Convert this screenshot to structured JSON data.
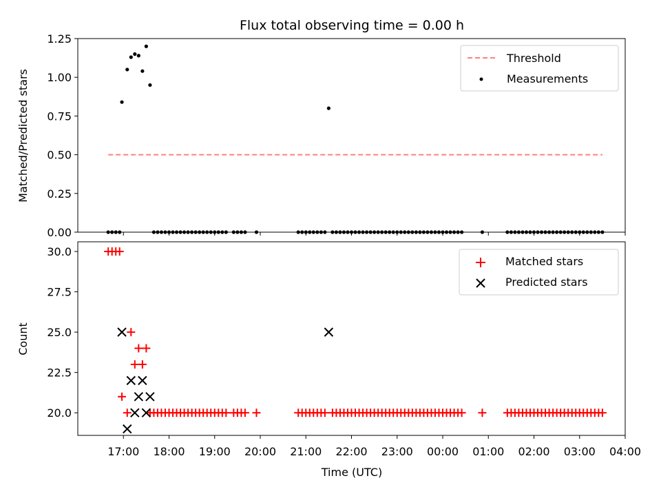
{
  "figure": {
    "title": "Flux total observing time = 0.00 h"
  },
  "chart_data": [
    {
      "type": "scatter",
      "panel": "top",
      "ylabel": "Matched/Predicted stars",
      "ylim": [
        0,
        1.25
      ],
      "yticks": [
        "0.00",
        "0.25",
        "0.50",
        "0.75",
        "1.00",
        "1.25"
      ],
      "xlim_hours": [
        16.0,
        28.0
      ],
      "threshold": {
        "name": "Threshold",
        "value": 0.5,
        "x_range": [
          "16:40",
          "03:30"
        ],
        "color": "#ff7f7f"
      },
      "series": [
        {
          "name": "Measurements",
          "color": "#000000",
          "points": [
            [
              "16:40",
              0
            ],
            [
              "16:45",
              0
            ],
            [
              "16:50",
              0
            ],
            [
              "16:55",
              0
            ],
            [
              "16:58",
              0.84
            ],
            [
              "17:05",
              1.05
            ],
            [
              "17:10",
              1.13
            ],
            [
              "17:15",
              1.15
            ],
            [
              "17:20",
              1.14
            ],
            [
              "17:25",
              1.04
            ],
            [
              "17:30",
              1.2
            ],
            [
              "17:35",
              0.95
            ],
            [
              "17:40",
              0
            ],
            [
              "17:45",
              0
            ],
            [
              "17:50",
              0
            ],
            [
              "17:55",
              0
            ],
            [
              "18:00",
              0
            ],
            [
              "18:05",
              0
            ],
            [
              "18:10",
              0
            ],
            [
              "18:15",
              0
            ],
            [
              "18:20",
              0
            ],
            [
              "18:25",
              0
            ],
            [
              "18:30",
              0
            ],
            [
              "18:35",
              0
            ],
            [
              "18:40",
              0
            ],
            [
              "18:45",
              0
            ],
            [
              "18:50",
              0
            ],
            [
              "18:55",
              0
            ],
            [
              "19:00",
              0
            ],
            [
              "19:05",
              0
            ],
            [
              "19:10",
              0
            ],
            [
              "19:15",
              0
            ],
            [
              "19:25",
              0
            ],
            [
              "19:30",
              0
            ],
            [
              "19:35",
              0
            ],
            [
              "19:40",
              0
            ],
            [
              "19:55",
              0
            ],
            [
              "20:50",
              0
            ],
            [
              "20:55",
              0
            ],
            [
              "21:00",
              0
            ],
            [
              "21:05",
              0
            ],
            [
              "21:10",
              0
            ],
            [
              "21:15",
              0
            ],
            [
              "21:20",
              0
            ],
            [
              "21:25",
              0
            ],
            [
              "21:30",
              0.8
            ],
            [
              "21:35",
              0
            ],
            [
              "21:40",
              0
            ],
            [
              "21:45",
              0
            ],
            [
              "21:50",
              0
            ],
            [
              "21:55",
              0
            ],
            [
              "22:00",
              0
            ],
            [
              "22:05",
              0
            ],
            [
              "22:10",
              0
            ],
            [
              "22:15",
              0
            ],
            [
              "22:20",
              0
            ],
            [
              "22:25",
              0
            ],
            [
              "22:30",
              0
            ],
            [
              "22:35",
              0
            ],
            [
              "22:40",
              0
            ],
            [
              "22:45",
              0
            ],
            [
              "22:50",
              0
            ],
            [
              "22:55",
              0
            ],
            [
              "23:00",
              0
            ],
            [
              "23:05",
              0
            ],
            [
              "23:10",
              0
            ],
            [
              "23:15",
              0
            ],
            [
              "23:20",
              0
            ],
            [
              "23:25",
              0
            ],
            [
              "23:30",
              0
            ],
            [
              "23:35",
              0
            ],
            [
              "23:40",
              0
            ],
            [
              "23:45",
              0
            ],
            [
              "23:50",
              0
            ],
            [
              "23:55",
              0
            ],
            [
              "00:00",
              0
            ],
            [
              "00:05",
              0
            ],
            [
              "00:10",
              0
            ],
            [
              "00:15",
              0
            ],
            [
              "00:20",
              0
            ],
            [
              "00:25",
              0
            ],
            [
              "00:52",
              0
            ],
            [
              "01:25",
              0
            ],
            [
              "01:30",
              0
            ],
            [
              "01:35",
              0
            ],
            [
              "01:40",
              0
            ],
            [
              "01:45",
              0
            ],
            [
              "01:50",
              0
            ],
            [
              "01:55",
              0
            ],
            [
              "02:00",
              0
            ],
            [
              "02:05",
              0
            ],
            [
              "02:10",
              0
            ],
            [
              "02:15",
              0
            ],
            [
              "02:20",
              0
            ],
            [
              "02:25",
              0
            ],
            [
              "02:30",
              0
            ],
            [
              "02:35",
              0
            ],
            [
              "02:40",
              0
            ],
            [
              "02:45",
              0
            ],
            [
              "02:50",
              0
            ],
            [
              "02:55",
              0
            ],
            [
              "03:00",
              0
            ],
            [
              "03:05",
              0
            ],
            [
              "03:10",
              0
            ],
            [
              "03:15",
              0
            ],
            [
              "03:20",
              0
            ],
            [
              "03:25",
              0
            ],
            [
              "03:30",
              0
            ]
          ]
        }
      ],
      "legend": {
        "placement": "top-right",
        "entries": [
          "Threshold",
          "Measurements"
        ]
      }
    },
    {
      "type": "scatter",
      "panel": "bottom",
      "ylabel": "Count",
      "xlabel": "Time (UTC)",
      "ylim": [
        18.6,
        30.6
      ],
      "yticks": [
        "20.0",
        "22.5",
        "25.0",
        "27.5",
        "30.0"
      ],
      "xticks": [
        "17:00",
        "18:00",
        "19:00",
        "20:00",
        "21:00",
        "22:00",
        "23:00",
        "00:00",
        "01:00",
        "02:00",
        "03:00",
        "04:00"
      ],
      "series": [
        {
          "name": "Matched stars",
          "marker": "+",
          "color": "#ff0000",
          "points": [
            [
              "16:40",
              30
            ],
            [
              "16:45",
              30
            ],
            [
              "16:50",
              30
            ],
            [
              "16:55",
              30
            ],
            [
              "16:58",
              21
            ],
            [
              "17:05",
              20
            ],
            [
              "17:10",
              25
            ],
            [
              "17:15",
              23
            ],
            [
              "17:20",
              24
            ],
            [
              "17:25",
              23
            ],
            [
              "17:30",
              24
            ],
            [
              "17:35",
              20
            ],
            [
              "17:40",
              20
            ],
            [
              "17:45",
              20
            ],
            [
              "17:50",
              20
            ],
            [
              "17:55",
              20
            ],
            [
              "18:00",
              20
            ],
            [
              "18:05",
              20
            ],
            [
              "18:10",
              20
            ],
            [
              "18:15",
              20
            ],
            [
              "18:20",
              20
            ],
            [
              "18:25",
              20
            ],
            [
              "18:30",
              20
            ],
            [
              "18:35",
              20
            ],
            [
              "18:40",
              20
            ],
            [
              "18:45",
              20
            ],
            [
              "18:50",
              20
            ],
            [
              "18:55",
              20
            ],
            [
              "19:00",
              20
            ],
            [
              "19:05",
              20
            ],
            [
              "19:10",
              20
            ],
            [
              "19:15",
              20
            ],
            [
              "19:25",
              20
            ],
            [
              "19:30",
              20
            ],
            [
              "19:35",
              20
            ],
            [
              "19:40",
              20
            ],
            [
              "19:55",
              20
            ],
            [
              "20:50",
              20
            ],
            [
              "20:55",
              20
            ],
            [
              "21:00",
              20
            ],
            [
              "21:05",
              20
            ],
            [
              "21:10",
              20
            ],
            [
              "21:15",
              20
            ],
            [
              "21:20",
              20
            ],
            [
              "21:25",
              20
            ],
            [
              "21:35",
              20
            ],
            [
              "21:40",
              20
            ],
            [
              "21:45",
              20
            ],
            [
              "21:50",
              20
            ],
            [
              "21:55",
              20
            ],
            [
              "22:00",
              20
            ],
            [
              "22:05",
              20
            ],
            [
              "22:10",
              20
            ],
            [
              "22:15",
              20
            ],
            [
              "22:20",
              20
            ],
            [
              "22:25",
              20
            ],
            [
              "22:30",
              20
            ],
            [
              "22:35",
              20
            ],
            [
              "22:40",
              20
            ],
            [
              "22:45",
              20
            ],
            [
              "22:50",
              20
            ],
            [
              "22:55",
              20
            ],
            [
              "23:00",
              20
            ],
            [
              "23:05",
              20
            ],
            [
              "23:10",
              20
            ],
            [
              "23:15",
              20
            ],
            [
              "23:20",
              20
            ],
            [
              "23:25",
              20
            ],
            [
              "23:30",
              20
            ],
            [
              "23:35",
              20
            ],
            [
              "23:40",
              20
            ],
            [
              "23:45",
              20
            ],
            [
              "23:50",
              20
            ],
            [
              "23:55",
              20
            ],
            [
              "00:00",
              20
            ],
            [
              "00:05",
              20
            ],
            [
              "00:10",
              20
            ],
            [
              "00:15",
              20
            ],
            [
              "00:20",
              20
            ],
            [
              "00:25",
              20
            ],
            [
              "00:52",
              20
            ],
            [
              "01:25",
              20
            ],
            [
              "01:30",
              20
            ],
            [
              "01:35",
              20
            ],
            [
              "01:40",
              20
            ],
            [
              "01:45",
              20
            ],
            [
              "01:50",
              20
            ],
            [
              "01:55",
              20
            ],
            [
              "02:00",
              20
            ],
            [
              "02:05",
              20
            ],
            [
              "02:10",
              20
            ],
            [
              "02:15",
              20
            ],
            [
              "02:20",
              20
            ],
            [
              "02:25",
              20
            ],
            [
              "02:30",
              20
            ],
            [
              "02:35",
              20
            ],
            [
              "02:40",
              20
            ],
            [
              "02:45",
              20
            ],
            [
              "02:50",
              20
            ],
            [
              "02:55",
              20
            ],
            [
              "03:00",
              20
            ],
            [
              "03:05",
              20
            ],
            [
              "03:10",
              20
            ],
            [
              "03:15",
              20
            ],
            [
              "03:20",
              20
            ],
            [
              "03:25",
              20
            ],
            [
              "03:30",
              20
            ]
          ]
        },
        {
          "name": "Predicted stars",
          "marker": "x",
          "color": "#000000",
          "points": [
            [
              "16:58",
              25
            ],
            [
              "17:05",
              19
            ],
            [
              "17:10",
              22
            ],
            [
              "17:15",
              20
            ],
            [
              "17:20",
              21
            ],
            [
              "17:25",
              22
            ],
            [
              "17:30",
              20
            ],
            [
              "17:35",
              21
            ],
            [
              "21:30",
              25
            ]
          ]
        }
      ],
      "legend": {
        "placement": "top-right",
        "entries": [
          "Matched stars",
          "Predicted stars"
        ]
      }
    }
  ]
}
